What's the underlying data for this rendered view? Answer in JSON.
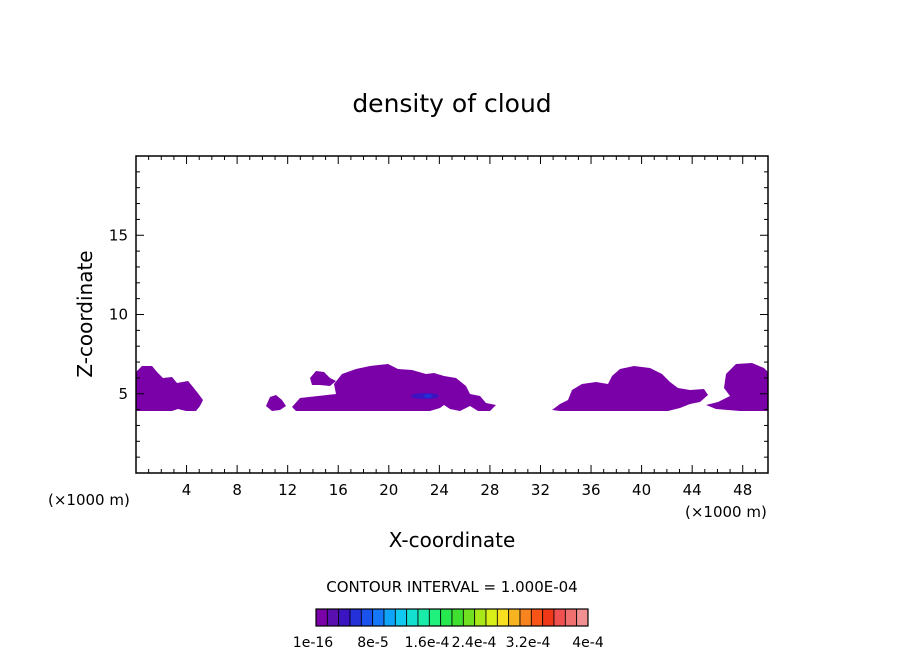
{
  "chart_data": {
    "type": "heatmap",
    "title": "density of cloud",
    "xlabel": "X-coordinate",
    "ylabel": "Z-coordinate",
    "x_unit_left": "(×1000 m)",
    "x_unit_right": "(×1000 m)",
    "xlim": [
      0,
      50
    ],
    "ylim": [
      0,
      20
    ],
    "x_ticks": [
      4,
      8,
      12,
      16,
      20,
      24,
      28,
      32,
      36,
      40,
      44,
      48
    ],
    "y_ticks": [
      5,
      10,
      15
    ],
    "contour_interval_label": "CONTOUR INTERVAL = 1.000E-04",
    "colorbar": {
      "labels": [
        "1e-16",
        "8e-5",
        "1.6e-4",
        "2.4e-4",
        "3.2e-4",
        "4e-4"
      ],
      "colors": [
        "#7a00a8",
        "#5a0fb0",
        "#3a14c0",
        "#2430d8",
        "#1a52ee",
        "#1478f8",
        "#10a4f8",
        "#10c8f0",
        "#14e0d0",
        "#18eca8",
        "#20f07c",
        "#28e850",
        "#40e030",
        "#70e020",
        "#a8e818",
        "#d8f018",
        "#f8e020",
        "#f8b420",
        "#f88420",
        "#f85418",
        "#f03818",
        "#f05050",
        "#f07070",
        "#f09090"
      ]
    },
    "regions": [
      {
        "name": "cloud-1",
        "x": [
          0,
          5.5
        ],
        "z": [
          4.0,
          6.9
        ],
        "level": "1e-16"
      },
      {
        "name": "cloud-2",
        "x": [
          10.3,
          28.8
        ],
        "z": [
          4.0,
          6.9
        ],
        "level": "1e-16"
      },
      {
        "name": "cloud-3",
        "x": [
          32.7,
          50
        ],
        "z": [
          4.0,
          7.0
        ],
        "level": "1e-16"
      },
      {
        "name": "cloud-core",
        "x": [
          21.5,
          24.2
        ],
        "z": [
          4.6,
          5.2
        ],
        "level": "8e-5"
      }
    ]
  }
}
